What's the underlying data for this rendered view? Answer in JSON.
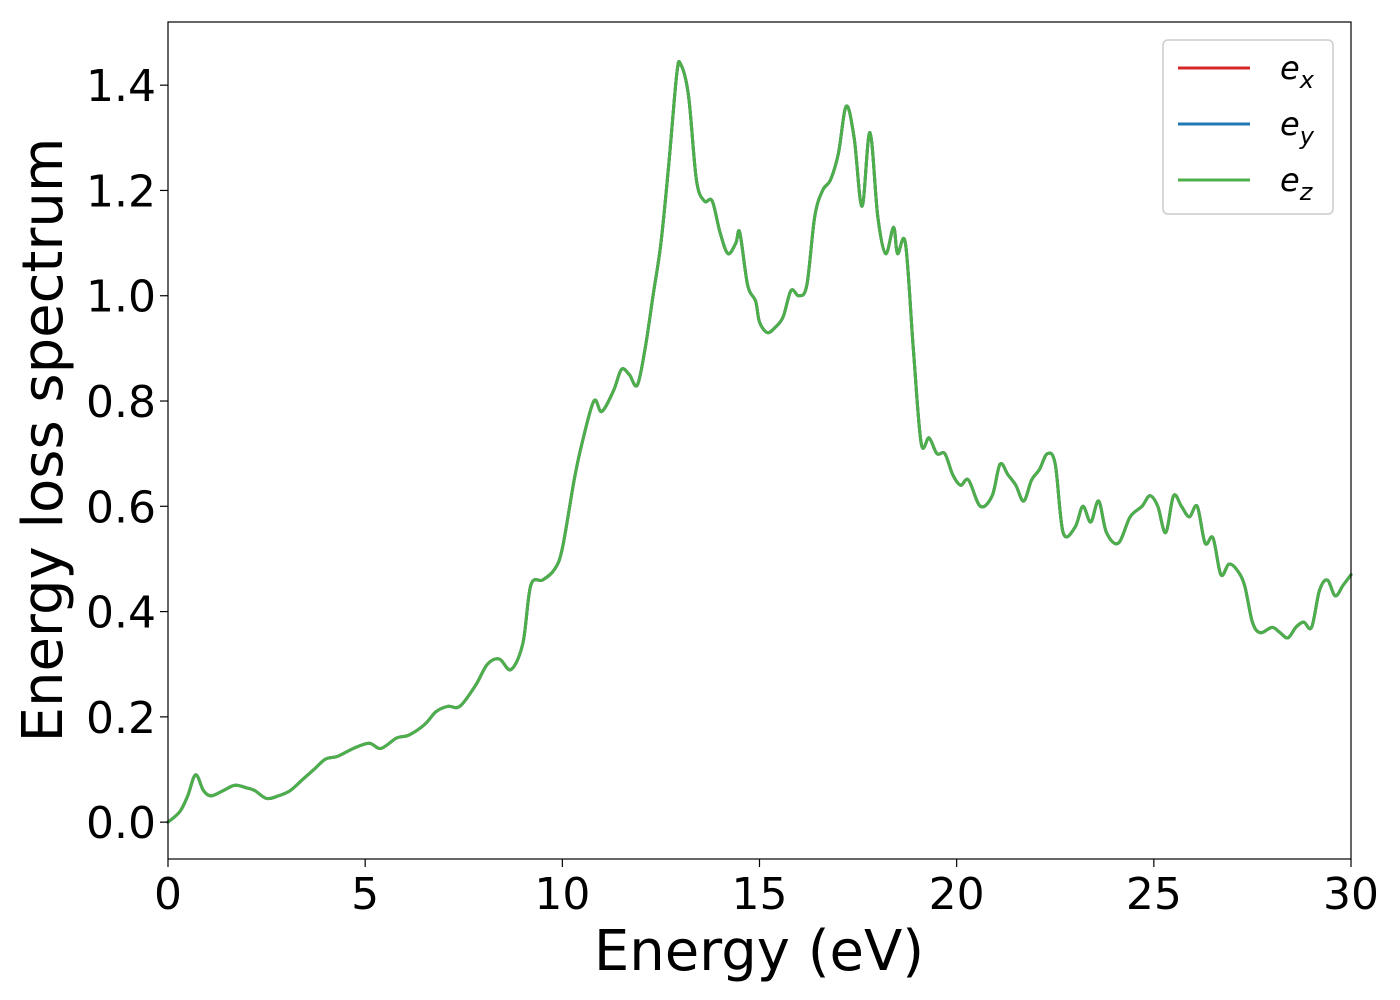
{
  "chart_data": {
    "type": "line",
    "xlabel": "Energy (eV)",
    "ylabel": "Energy loss spectrum",
    "xlim": [
      0,
      30
    ],
    "ylim": [
      -0.07,
      1.52
    ],
    "xticks": [
      0,
      5,
      10,
      15,
      20,
      25,
      30
    ],
    "yticks": [
      0.0,
      0.2,
      0.4,
      0.6,
      0.8,
      1.0,
      1.2,
      1.4
    ],
    "xtick_labels": [
      "0",
      "5",
      "10",
      "15",
      "20",
      "25",
      "30"
    ],
    "ytick_labels": [
      "0.0",
      "0.2",
      "0.4",
      "0.6",
      "0.8",
      "1.0",
      "1.2",
      "1.4"
    ],
    "grid": false,
    "legend_position": "top-right",
    "x": [
      0,
      0.3,
      0.5,
      0.7,
      0.9,
      1.1,
      1.4,
      1.7,
      2.0,
      2.2,
      2.5,
      2.8,
      3.1,
      3.4,
      3.7,
      4.0,
      4.3,
      4.7,
      5.1,
      5.4,
      5.8,
      6.1,
      6.5,
      6.8,
      7.1,
      7.4,
      7.8,
      8.1,
      8.4,
      8.7,
      9.0,
      9.2,
      9.5,
      9.8,
      10.0,
      10.3,
      10.5,
      10.8,
      11.0,
      11.3,
      11.5,
      11.7,
      11.9,
      12.1,
      12.3,
      12.5,
      12.7,
      12.9,
      13.0,
      13.2,
      13.4,
      13.6,
      13.8,
      14.0,
      14.2,
      14.4,
      14.5,
      14.7,
      14.9,
      15.0,
      15.2,
      15.4,
      15.6,
      15.8,
      16.0,
      16.2,
      16.4,
      16.6,
      16.8,
      17.0,
      17.2,
      17.4,
      17.6,
      17.8,
      18.0,
      18.2,
      18.4,
      18.5,
      18.7,
      18.9,
      19.1,
      19.3,
      19.5,
      19.7,
      19.9,
      20.1,
      20.3,
      20.6,
      20.9,
      21.1,
      21.3,
      21.5,
      21.7,
      21.9,
      22.1,
      22.3,
      22.5,
      22.7,
      23.0,
      23.2,
      23.4,
      23.6,
      23.8,
      24.1,
      24.4,
      24.7,
      24.9,
      25.1,
      25.3,
      25.5,
      25.7,
      25.9,
      26.1,
      26.3,
      26.5,
      26.7,
      26.9,
      27.1,
      27.3,
      27.5,
      27.7,
      28.0,
      28.2,
      28.4,
      28.6,
      28.8,
      29.0,
      29.2,
      29.4,
      29.6,
      29.8,
      30.0
    ],
    "series": [
      {
        "name": "e_x",
        "label_main": "e",
        "label_sub": "x",
        "color": "#d62728",
        "values": [
          0.0,
          0.02,
          0.05,
          0.09,
          0.06,
          0.05,
          0.06,
          0.07,
          0.065,
          0.06,
          0.045,
          0.05,
          0.06,
          0.08,
          0.1,
          0.12,
          0.125,
          0.14,
          0.15,
          0.14,
          0.16,
          0.165,
          0.185,
          0.21,
          0.22,
          0.22,
          0.26,
          0.3,
          0.31,
          0.29,
          0.34,
          0.45,
          0.46,
          0.48,
          0.52,
          0.65,
          0.72,
          0.8,
          0.78,
          0.82,
          0.86,
          0.85,
          0.83,
          0.9,
          1.0,
          1.1,
          1.25,
          1.42,
          1.44,
          1.38,
          1.22,
          1.18,
          1.18,
          1.12,
          1.08,
          1.1,
          1.12,
          1.02,
          0.99,
          0.95,
          0.93,
          0.94,
          0.96,
          1.01,
          1.0,
          1.02,
          1.15,
          1.2,
          1.22,
          1.27,
          1.36,
          1.3,
          1.17,
          1.31,
          1.15,
          1.08,
          1.13,
          1.08,
          1.1,
          0.9,
          0.72,
          0.73,
          0.7,
          0.7,
          0.66,
          0.64,
          0.65,
          0.6,
          0.62,
          0.68,
          0.66,
          0.64,
          0.61,
          0.65,
          0.67,
          0.7,
          0.68,
          0.55,
          0.56,
          0.6,
          0.57,
          0.61,
          0.55,
          0.53,
          0.58,
          0.6,
          0.62,
          0.6,
          0.55,
          0.62,
          0.6,
          0.58,
          0.6,
          0.53,
          0.54,
          0.47,
          0.49,
          0.48,
          0.45,
          0.38,
          0.36,
          0.37,
          0.36,
          0.35,
          0.37,
          0.38,
          0.37,
          0.44,
          0.46,
          0.43,
          0.45,
          0.47
        ]
      },
      {
        "name": "e_y",
        "label_main": "e",
        "label_sub": "y",
        "color": "#1f77b4",
        "values": [
          0.0,
          0.02,
          0.05,
          0.09,
          0.06,
          0.05,
          0.06,
          0.07,
          0.065,
          0.06,
          0.045,
          0.05,
          0.06,
          0.08,
          0.1,
          0.12,
          0.125,
          0.14,
          0.15,
          0.14,
          0.16,
          0.165,
          0.185,
          0.21,
          0.22,
          0.22,
          0.26,
          0.3,
          0.31,
          0.29,
          0.34,
          0.45,
          0.46,
          0.48,
          0.52,
          0.65,
          0.72,
          0.8,
          0.78,
          0.82,
          0.86,
          0.85,
          0.83,
          0.9,
          1.0,
          1.1,
          1.25,
          1.42,
          1.44,
          1.38,
          1.22,
          1.18,
          1.18,
          1.12,
          1.08,
          1.1,
          1.12,
          1.02,
          0.99,
          0.95,
          0.93,
          0.94,
          0.96,
          1.01,
          1.0,
          1.02,
          1.15,
          1.2,
          1.22,
          1.27,
          1.36,
          1.3,
          1.17,
          1.31,
          1.15,
          1.08,
          1.13,
          1.08,
          1.1,
          0.9,
          0.72,
          0.73,
          0.7,
          0.7,
          0.66,
          0.64,
          0.65,
          0.6,
          0.62,
          0.68,
          0.66,
          0.64,
          0.61,
          0.65,
          0.67,
          0.7,
          0.68,
          0.55,
          0.56,
          0.6,
          0.57,
          0.61,
          0.55,
          0.53,
          0.58,
          0.6,
          0.62,
          0.6,
          0.55,
          0.62,
          0.6,
          0.58,
          0.6,
          0.53,
          0.54,
          0.47,
          0.49,
          0.48,
          0.45,
          0.38,
          0.36,
          0.37,
          0.36,
          0.35,
          0.37,
          0.38,
          0.37,
          0.44,
          0.46,
          0.43,
          0.45,
          0.47
        ]
      },
      {
        "name": "e_z",
        "label_main": "e",
        "label_sub": "z",
        "color": "#4daf4a",
        "values": [
          0.0,
          0.02,
          0.05,
          0.09,
          0.06,
          0.05,
          0.06,
          0.07,
          0.065,
          0.06,
          0.045,
          0.05,
          0.06,
          0.08,
          0.1,
          0.12,
          0.125,
          0.14,
          0.15,
          0.14,
          0.16,
          0.165,
          0.185,
          0.21,
          0.22,
          0.22,
          0.26,
          0.3,
          0.31,
          0.29,
          0.34,
          0.45,
          0.46,
          0.48,
          0.52,
          0.65,
          0.72,
          0.8,
          0.78,
          0.82,
          0.86,
          0.85,
          0.83,
          0.9,
          1.0,
          1.1,
          1.25,
          1.42,
          1.44,
          1.38,
          1.22,
          1.18,
          1.18,
          1.12,
          1.08,
          1.1,
          1.12,
          1.02,
          0.99,
          0.95,
          0.93,
          0.94,
          0.96,
          1.01,
          1.0,
          1.02,
          1.15,
          1.2,
          1.22,
          1.27,
          1.36,
          1.3,
          1.17,
          1.31,
          1.15,
          1.08,
          1.13,
          1.08,
          1.1,
          0.9,
          0.72,
          0.73,
          0.7,
          0.7,
          0.66,
          0.64,
          0.65,
          0.6,
          0.62,
          0.68,
          0.66,
          0.64,
          0.61,
          0.65,
          0.67,
          0.7,
          0.68,
          0.55,
          0.56,
          0.6,
          0.57,
          0.61,
          0.55,
          0.53,
          0.58,
          0.6,
          0.62,
          0.6,
          0.55,
          0.62,
          0.6,
          0.58,
          0.6,
          0.53,
          0.54,
          0.47,
          0.49,
          0.48,
          0.45,
          0.38,
          0.36,
          0.37,
          0.36,
          0.35,
          0.37,
          0.38,
          0.37,
          0.44,
          0.46,
          0.43,
          0.45,
          0.47
        ]
      }
    ]
  }
}
